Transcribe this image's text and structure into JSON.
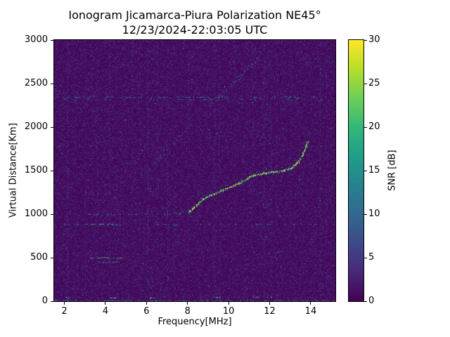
{
  "chart_data": {
    "type": "heatmap",
    "title": "Ionogram Jicamarca-Piura Polarization NE45°",
    "subtitle": "12/23/2024-22:03:05 UTC",
    "xlabel": "Frequency[MHz]",
    "ylabel": "Virtual Distance[Km]",
    "colorbar_label": "SNR [dB]",
    "xlim": [
      1.5,
      15.2
    ],
    "ylim": [
      0,
      3000
    ],
    "clim": [
      0,
      30
    ],
    "x_ticks": [
      2,
      4,
      6,
      8,
      10,
      12,
      14
    ],
    "y_ticks": [
      0,
      500,
      1000,
      1500,
      2000,
      2500,
      3000
    ],
    "colorbar_ticks": [
      0,
      5,
      10,
      15,
      20,
      25,
      30
    ],
    "colormap": [
      "#440154",
      "#482878",
      "#3e4989",
      "#31688e",
      "#26828e",
      "#1f9e89",
      "#35b779",
      "#6ece58",
      "#b5de2b",
      "#fde725"
    ],
    "grid": false,
    "legend": "none",
    "noise": {
      "seed": 1337,
      "mean": 1.2,
      "speck_prob": 0.02,
      "speck_min": 3,
      "speck_span": 5,
      "hot_prob": 0.0015,
      "hot_min": 12,
      "hot_span": 8
    },
    "rfi_vertical": [
      {
        "mhz": 2.15,
        "snr": 6,
        "density": 0.45
      },
      {
        "mhz": 2.5,
        "snr": 4,
        "density": 0.25
      },
      {
        "mhz": 3.0,
        "snr": 5,
        "density": 0.35
      },
      {
        "mhz": 3.35,
        "snr": 4,
        "density": 0.25
      },
      {
        "mhz": 3.6,
        "snr": 4,
        "density": 0.22
      },
      {
        "mhz": 4.2,
        "snr": 5,
        "density": 0.3
      },
      {
        "mhz": 4.55,
        "snr": 4,
        "density": 0.25
      },
      {
        "mhz": 5.0,
        "snr": 3,
        "density": 0.18
      },
      {
        "mhz": 5.3,
        "snr": 5,
        "density": 0.3
      },
      {
        "mhz": 5.65,
        "snr": 4,
        "density": 0.25
      },
      {
        "mhz": 6.05,
        "snr": 6,
        "density": 0.4
      },
      {
        "mhz": 6.5,
        "snr": 5,
        "density": 0.3
      },
      {
        "mhz": 6.7,
        "snr": 4,
        "density": 0.25
      },
      {
        "mhz": 7.0,
        "snr": 5,
        "density": 0.3
      },
      {
        "mhz": 7.35,
        "snr": 4,
        "density": 0.22
      },
      {
        "mhz": 8.05,
        "snr": 4,
        "density": 0.25
      },
      {
        "mhz": 8.6,
        "snr": 3,
        "density": 0.18
      },
      {
        "mhz": 9.3,
        "snr": 6,
        "density": 0.35
      },
      {
        "mhz": 9.55,
        "snr": 4,
        "density": 0.25
      },
      {
        "mhz": 10.3,
        "snr": 4,
        "density": 0.22
      },
      {
        "mhz": 10.7,
        "snr": 3,
        "density": 0.18
      },
      {
        "mhz": 11.15,
        "snr": 5,
        "density": 0.3
      },
      {
        "mhz": 11.7,
        "snr": 6,
        "density": 0.35
      },
      {
        "mhz": 12.05,
        "snr": 5,
        "density": 0.3
      },
      {
        "mhz": 12.35,
        "snr": 4,
        "density": 0.22
      },
      {
        "mhz": 13.0,
        "snr": 4,
        "density": 0.25
      },
      {
        "mhz": 13.45,
        "snr": 4,
        "density": 0.22
      },
      {
        "mhz": 14.0,
        "snr": 3,
        "density": 0.18
      },
      {
        "mhz": 14.45,
        "snr": 6,
        "density": 0.35
      },
      {
        "mhz": 14.75,
        "snr": 5,
        "density": 0.3
      },
      {
        "mhz": 14.95,
        "snr": 4,
        "density": 0.25
      }
    ],
    "interference_lines": [
      {
        "km": 2345,
        "x": [
          1.5,
          15.2
        ],
        "snr": 17,
        "density": 0.18
      },
      {
        "km": 2320,
        "x": [
          1.5,
          15.2
        ],
        "snr": 12,
        "density": 0.08
      },
      {
        "km": 885,
        "x": [
          1.5,
          15.2
        ],
        "snr": 15,
        "density": 0.1
      },
      {
        "km": 885,
        "x": [
          3.3,
          4.7
        ],
        "snr": 22,
        "density": 0.3
      },
      {
        "km": 1000,
        "x": [
          3.1,
          6.6
        ],
        "snr": 13,
        "density": 0.1
      },
      {
        "km": 500,
        "x": [
          3.2,
          4.9
        ],
        "snr": 24,
        "density": 0.4
      },
      {
        "km": 450,
        "x": [
          3.3,
          4.7
        ],
        "snr": 20,
        "density": 0.28
      },
      {
        "km": 12,
        "x": [
          1.5,
          15.2
        ],
        "snr": 13,
        "density": 0.35
      },
      {
        "km": 40,
        "x": [
          2.05,
          2.3
        ],
        "snr": 26,
        "density": 0.8
      },
      {
        "km": 40,
        "x": [
          4.2,
          4.5
        ],
        "snr": 26,
        "density": 0.8
      },
      {
        "km": 40,
        "x": [
          6.15,
          6.45
        ],
        "snr": 26,
        "density": 0.8
      },
      {
        "km": 45,
        "x": [
          9.3,
          9.6
        ],
        "snr": 26,
        "density": 0.8
      },
      {
        "km": 45,
        "x": [
          11.2,
          11.45
        ],
        "snr": 26,
        "density": 0.8
      },
      {
        "km": 45,
        "x": [
          11.85,
          12.1
        ],
        "snr": 26,
        "density": 0.8
      }
    ],
    "traces": [
      {
        "name": "f-trace-lead",
        "snr": 20,
        "density": 0.3,
        "jitter": 2,
        "size": 1,
        "points": [
          [
            6.8,
            1000
          ],
          [
            7.3,
            1003
          ],
          [
            7.9,
            1012
          ],
          [
            8.1,
            1028
          ]
        ]
      },
      {
        "name": "f-trace-main",
        "snr": 27,
        "density": 0.92,
        "jitter": 1,
        "size": 2,
        "points": [
          [
            8.05,
            1025
          ],
          [
            8.3,
            1070
          ],
          [
            8.6,
            1140
          ],
          [
            9.0,
            1205
          ],
          [
            9.4,
            1245
          ],
          [
            9.8,
            1285
          ],
          [
            10.2,
            1320
          ],
          [
            10.6,
            1365
          ],
          [
            11.0,
            1425
          ],
          [
            11.4,
            1455
          ],
          [
            11.8,
            1470
          ],
          [
            12.2,
            1485
          ],
          [
            12.6,
            1495
          ],
          [
            13.0,
            1525
          ],
          [
            13.2,
            1555
          ],
          [
            13.4,
            1600
          ],
          [
            13.55,
            1655
          ],
          [
            13.7,
            1730
          ],
          [
            13.8,
            1800
          ],
          [
            13.85,
            1835
          ]
        ]
      },
      {
        "name": "f-trace-upper-mode",
        "snr": 15,
        "density": 0.25,
        "jitter": 2,
        "size": 1,
        "points": [
          [
            8.5,
            1160
          ],
          [
            9.0,
            1250
          ],
          [
            9.5,
            1300
          ],
          [
            10.0,
            1345
          ],
          [
            10.5,
            1395
          ],
          [
            11.0,
            1465
          ],
          [
            11.5,
            1505
          ],
          [
            12.0,
            1520
          ],
          [
            12.6,
            1540
          ],
          [
            13.0,
            1570
          ],
          [
            13.3,
            1620
          ],
          [
            13.5,
            1680
          ]
        ]
      },
      {
        "name": "oblique-echo-lower",
        "snr": 12,
        "density": 0.3,
        "jitter": 2,
        "size": 1,
        "points": [
          [
            5.75,
            1430
          ],
          [
            6.4,
            1585
          ],
          [
            7.0,
            1730
          ],
          [
            7.6,
            1875
          ],
          [
            8.2,
            2020
          ],
          [
            8.8,
            2165
          ],
          [
            9.4,
            2310
          ]
        ]
      },
      {
        "name": "oblique-echo-upper",
        "snr": 17,
        "density": 0.5,
        "jitter": 2,
        "size": 1,
        "points": [
          [
            9.4,
            2310
          ],
          [
            10.0,
            2450
          ],
          [
            10.6,
            2595
          ],
          [
            11.1,
            2705
          ],
          [
            11.5,
            2795
          ]
        ]
      }
    ]
  }
}
